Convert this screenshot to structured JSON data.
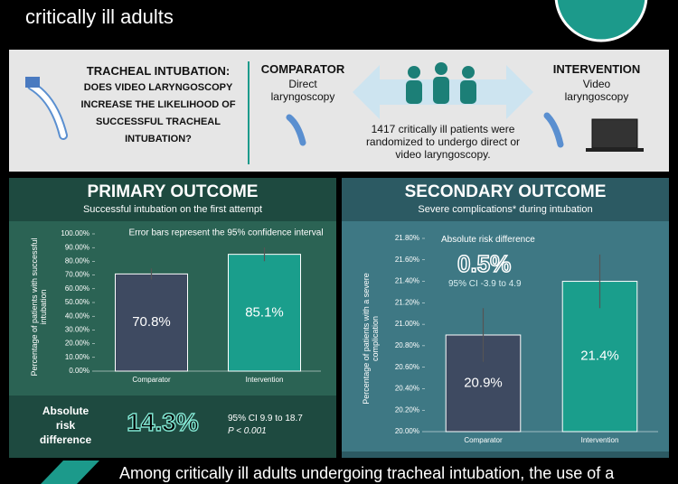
{
  "header": {
    "title": "critically ill adults"
  },
  "question": {
    "lead": "TRACHEAL INTUBATION:",
    "text": "DOES VIDEO LARYNGOSCOPY INCREASE THE LIKELIHOOD OF SUCCESSFUL TRACHEAL INTUBATION?"
  },
  "comparator": {
    "label": "COMPARATOR",
    "text": "Direct laryngoscopy"
  },
  "intervention": {
    "label": "INTERVENTION",
    "text": "Video laryngoscopy"
  },
  "population": "1417 critically ill patients were randomized to undergo direct or video laryngoscopy.",
  "chart_data": [
    {
      "type": "bar",
      "title": "PRIMARY OUTCOME",
      "subtitle": "Successful intubation on the first attempt",
      "note": "Error bars represent the 95% confidence interval",
      "y_label": "Percentage of patients with successful intubation",
      "categories": [
        "Comparator",
        "Intervention"
      ],
      "values": [
        70.8,
        85.1
      ],
      "value_labels": [
        "70.8%",
        "85.1%"
      ],
      "errors": [
        4,
        5
      ],
      "colors": [
        "#3e4a61",
        "#1a9e8c"
      ],
      "ylim": [
        0,
        100
      ],
      "yticks": [
        {
          "value": 0,
          "label": "0.00%"
        },
        {
          "value": 10,
          "label": "10.00%"
        },
        {
          "value": 20,
          "label": "20.00%"
        },
        {
          "value": 30,
          "label": "30.00%"
        },
        {
          "value": 40,
          "label": "40.00%"
        },
        {
          "value": 50,
          "label": "50.00%"
        },
        {
          "value": 60,
          "label": "60.00%"
        },
        {
          "value": 70,
          "label": "70.00%"
        },
        {
          "value": 80,
          "label": "80.00%"
        },
        {
          "value": 90,
          "label": "90.00%"
        },
        {
          "value": 100,
          "label": "100.00%"
        }
      ],
      "summary": {
        "label": "Absolute risk difference",
        "headline": "14.3%",
        "ci": "95% CI 9.9 to 18.7",
        "p": "P < 0.001"
      }
    },
    {
      "type": "bar",
      "title": "SECONDARY OUTCOME",
      "subtitle": "Severe complications* during intubation",
      "note": "Absolute risk difference",
      "headline": "0.5%",
      "ci": "95% CI -3.9 to 4.9",
      "y_label": "Percentage of patients with a severe complication",
      "categories": [
        "Comparator",
        "Intervention"
      ],
      "values": [
        20.9,
        21.4
      ],
      "value_labels": [
        "20.9%",
        "21.4%"
      ],
      "errors": [
        0.25,
        0.25
      ],
      "colors": [
        "#3e4a61",
        "#1a9e8c"
      ],
      "ylim": [
        20,
        21.8
      ],
      "yticks": [
        {
          "value": 20,
          "label": "20.00%"
        },
        {
          "value": 20.2,
          "label": "20.20%"
        },
        {
          "value": 20.4,
          "label": "20.40%"
        },
        {
          "value": 20.6,
          "label": "20.60%"
        },
        {
          "value": 20.8,
          "label": "20.80%"
        },
        {
          "value": 21,
          "label": "21.00%"
        },
        {
          "value": 21.2,
          "label": "21.20%"
        },
        {
          "value": 21.4,
          "label": "21.40%"
        },
        {
          "value": 21.6,
          "label": "21.60%"
        },
        {
          "value": 21.8,
          "label": "21.80%"
        }
      ]
    }
  ],
  "footer": {
    "text": "Among critically ill adults undergoing tracheal intubation, the use of a"
  }
}
